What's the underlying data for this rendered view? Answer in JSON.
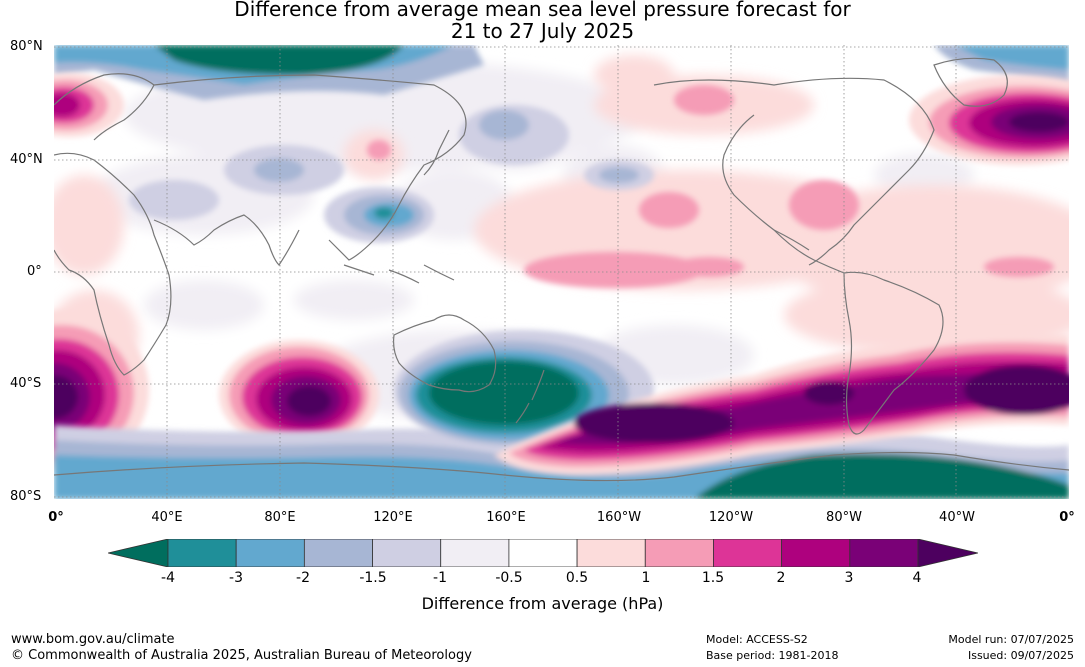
{
  "title": {
    "line1": "Difference from average mean sea level pressure forecast for",
    "line2": "21 to 27 July 2025"
  },
  "map": {
    "lat_labels": [
      "80°N",
      "40°N",
      "0°",
      "40°S",
      "80°S"
    ],
    "lon_labels": [
      "0°",
      "40°E",
      "80°E",
      "120°E",
      "160°E",
      "160°W",
      "120°W",
      "80°W",
      "40°W",
      "0°"
    ],
    "grid": true,
    "gridlines": "dotted"
  },
  "colorbar": {
    "tick_labels": [
      "-4",
      "-3",
      "-2",
      "-1.5",
      "-1",
      "-0.5",
      "0.5",
      "1",
      "1.5",
      "2",
      "3",
      "4"
    ],
    "colors": {
      "below_min": "#006e5e",
      "bins": [
        "#1f8f99",
        "#62a8cf",
        "#a7b6d4",
        "#cfcfe3",
        "#f1eef4",
        "#ffffff",
        "#fcdcdb",
        "#f59cb6",
        "#dd3497",
        "#ae017e",
        "#7a0177"
      ],
      "above_max": "#4d005f"
    },
    "extend": "both",
    "label": "Difference from average (hPa)"
  },
  "footer": {
    "website": "www.bom.gov.au/climate",
    "copyright": "© Commonwealth of Australia 2025, Australian Bureau of Meteorology",
    "model": "Model: ACCESS-S2",
    "base_period": "Base period: 1981-2018",
    "model_run": "Model run: 07/07/2025",
    "issued": "Issued: 09/07/2025"
  }
}
